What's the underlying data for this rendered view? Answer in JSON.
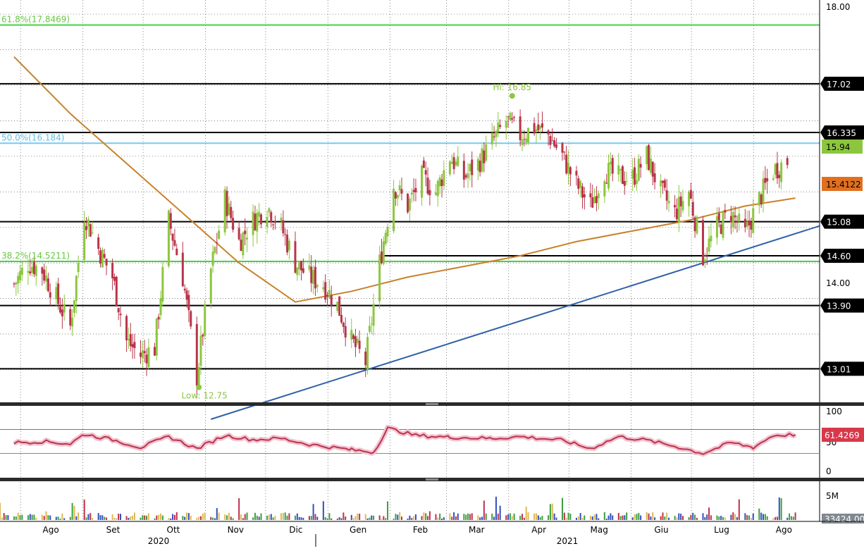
{
  "chart_data": [
    {
      "type": "candlestick",
      "panel": "price",
      "ylim": [
        12.3,
        18.1
      ],
      "y_ticks": [
        "18.00",
        "14.00"
      ],
      "x_months": [
        "Ago",
        "Set",
        "Ott",
        "Nov",
        "Dic",
        "Gen",
        "Feb",
        "Mar",
        "Apr",
        "Mag",
        "Giu",
        "Lug",
        "Ago"
      ],
      "x_years": [
        "2020",
        "2021"
      ],
      "approx_close_path": [
        {
          "date": "2020-07-27",
          "close": 14.2
        },
        {
          "date": "2020-08-03",
          "close": 14.5
        },
        {
          "date": "2020-08-10",
          "close": 14.4
        },
        {
          "date": "2020-08-17",
          "close": 14.0
        },
        {
          "date": "2020-08-24",
          "close": 13.6
        },
        {
          "date": "2020-08-31",
          "close": 15.2
        },
        {
          "date": "2020-09-07",
          "close": 14.7
        },
        {
          "date": "2020-09-14",
          "close": 14.3
        },
        {
          "date": "2020-09-21",
          "close": 13.4
        },
        {
          "date": "2020-09-28",
          "close": 13.2
        },
        {
          "date": "2020-10-05",
          "close": 13.3
        },
        {
          "date": "2020-10-12",
          "close": 15.1
        },
        {
          "date": "2020-10-19",
          "close": 14.3
        },
        {
          "date": "2020-10-26",
          "close": 12.9
        },
        {
          "date": "2020-11-02",
          "close": 14.4
        },
        {
          "date": "2020-11-09",
          "close": 15.4
        },
        {
          "date": "2020-11-16",
          "close": 14.8
        },
        {
          "date": "2020-11-23",
          "close": 15.1
        },
        {
          "date": "2020-11-30",
          "close": 15.3
        },
        {
          "date": "2020-12-07",
          "close": 15.0
        },
        {
          "date": "2020-12-14",
          "close": 14.5
        },
        {
          "date": "2020-12-21",
          "close": 14.3
        },
        {
          "date": "2020-12-28",
          "close": 14.2
        },
        {
          "date": "2021-01-04",
          "close": 13.9
        },
        {
          "date": "2021-01-11",
          "close": 13.4
        },
        {
          "date": "2021-01-18",
          "close": 13.1
        },
        {
          "date": "2021-01-25",
          "close": 14.5
        },
        {
          "date": "2021-02-01",
          "close": 15.6
        },
        {
          "date": "2021-02-08",
          "close": 15.3
        },
        {
          "date": "2021-02-15",
          "close": 15.7
        },
        {
          "date": "2021-02-22",
          "close": 15.5
        },
        {
          "date": "2021-03-01",
          "close": 16.0
        },
        {
          "date": "2021-03-08",
          "close": 15.7
        },
        {
          "date": "2021-03-15",
          "close": 15.9
        },
        {
          "date": "2021-03-22",
          "close": 16.2
        },
        {
          "date": "2021-03-29",
          "close": 16.5
        },
        {
          "date": "2021-04-05",
          "close": 16.3
        },
        {
          "date": "2021-04-12",
          "close": 16.4
        },
        {
          "date": "2021-04-19",
          "close": 16.3
        },
        {
          "date": "2021-04-26",
          "close": 16.0
        },
        {
          "date": "2021-05-03",
          "close": 15.6
        },
        {
          "date": "2021-05-10",
          "close": 15.3
        },
        {
          "date": "2021-05-17",
          "close": 15.8
        },
        {
          "date": "2021-05-24",
          "close": 15.7
        },
        {
          "date": "2021-05-31",
          "close": 15.7
        },
        {
          "date": "2021-06-07",
          "close": 16.0
        },
        {
          "date": "2021-06-14",
          "close": 15.5
        },
        {
          "date": "2021-06-21",
          "close": 15.2
        },
        {
          "date": "2021-06-28",
          "close": 15.5
        },
        {
          "date": "2021-07-05",
          "close": 14.6
        },
        {
          "date": "2021-07-12",
          "close": 15.0
        },
        {
          "date": "2021-07-19",
          "close": 15.2
        },
        {
          "date": "2021-07-26",
          "close": 14.9
        },
        {
          "date": "2021-08-02",
          "close": 15.4
        },
        {
          "date": "2021-08-09",
          "close": 15.8
        },
        {
          "date": "2021-08-16",
          "close": 15.94
        }
      ],
      "moving_average": [
        {
          "date": "2020-07-27",
          "value": 17.4
        },
        {
          "date": "2020-08-24",
          "value": 16.6
        },
        {
          "date": "2020-09-21",
          "value": 15.9
        },
        {
          "date": "2020-10-19",
          "value": 15.2
        },
        {
          "date": "2020-11-16",
          "value": 14.5
        },
        {
          "date": "2020-12-14",
          "value": 13.95
        },
        {
          "date": "2021-01-11",
          "value": 14.1
        },
        {
          "date": "2021-02-08",
          "value": 14.3
        },
        {
          "date": "2021-03-08",
          "value": 14.45
        },
        {
          "date": "2021-04-05",
          "value": 14.6
        },
        {
          "date": "2021-05-03",
          "value": 14.8
        },
        {
          "date": "2021-05-31",
          "value": 14.95
        },
        {
          "date": "2021-06-28",
          "value": 15.1
        },
        {
          "date": "2021-07-26",
          "value": 15.3
        },
        {
          "date": "2021-08-20",
          "value": 15.4122
        }
      ],
      "trendline": [
        {
          "date": "2020-11-02",
          "value": 12.3
        },
        {
          "date": "2021-01-25",
          "value": 13.06
        },
        {
          "date": "2021-08-27",
          "value": 15.02
        }
      ],
      "levels": [
        {
          "label": "17.02",
          "value": 17.02
        },
        {
          "label": "16.335",
          "value": 16.335
        },
        {
          "label": "15.08",
          "value": 15.08
        },
        {
          "label": "14.60",
          "value": 14.6
        },
        {
          "label": "13.90",
          "value": 13.9
        },
        {
          "label": "13.01",
          "value": 13.01
        }
      ],
      "fibonacci": [
        {
          "label": "61.8%(17.8469)",
          "value": 17.8469
        },
        {
          "label": "50.0%(16.184)",
          "value": 16.184
        },
        {
          "label": "38.2%(14.5211)",
          "value": 14.5211
        }
      ],
      "last_price_tag": "15.94",
      "ma_tag": "15.4122",
      "annotations": [
        {
          "text": "Hi: 16.85",
          "value": 16.85,
          "date": "2021-04-01"
        },
        {
          "text": "Low: 12.75",
          "value": 12.75,
          "date": "2020-10-27"
        }
      ],
      "colors": {
        "up": "#8cc63f",
        "down": "#b8354a",
        "ma": "#c8822a",
        "trend": "#3060a8",
        "fib": "#44d444",
        "fib_mid": "#78c8f0",
        "level": "#000000"
      }
    },
    {
      "type": "line",
      "panel": "rsi",
      "ylim": [
        0,
        100
      ],
      "y_ticks": [
        "100",
        "50",
        "0"
      ],
      "bands": [
        70,
        30
      ],
      "last_value_tag": "61.4269",
      "values": [
        {
          "date": "2020-07-27",
          "value": 48
        },
        {
          "date": "2020-08-10",
          "value": 50
        },
        {
          "date": "2020-08-24",
          "value": 46
        },
        {
          "date": "2020-08-31",
          "value": 62
        },
        {
          "date": "2020-09-14",
          "value": 53
        },
        {
          "date": "2020-09-28",
          "value": 40
        },
        {
          "date": "2020-10-12",
          "value": 58
        },
        {
          "date": "2020-10-26",
          "value": 38
        },
        {
          "date": "2020-11-09",
          "value": 60
        },
        {
          "date": "2020-11-23",
          "value": 53
        },
        {
          "date": "2020-12-07",
          "value": 55
        },
        {
          "date": "2020-12-21",
          "value": 45
        },
        {
          "date": "2021-01-11",
          "value": 36
        },
        {
          "date": "2021-01-22",
          "value": 32
        },
        {
          "date": "2021-01-29",
          "value": 72
        },
        {
          "date": "2021-02-12",
          "value": 60
        },
        {
          "date": "2021-03-01",
          "value": 57
        },
        {
          "date": "2021-03-22",
          "value": 55
        },
        {
          "date": "2021-04-05",
          "value": 58
        },
        {
          "date": "2021-04-26",
          "value": 52
        },
        {
          "date": "2021-05-10",
          "value": 38
        },
        {
          "date": "2021-05-24",
          "value": 58
        },
        {
          "date": "2021-06-07",
          "value": 52
        },
        {
          "date": "2021-06-21",
          "value": 42
        },
        {
          "date": "2021-07-05",
          "value": 30
        },
        {
          "date": "2021-07-19",
          "value": 48
        },
        {
          "date": "2021-07-30",
          "value": 40
        },
        {
          "date": "2021-08-09",
          "value": 60
        },
        {
          "date": "2021-08-20",
          "value": 61.43
        }
      ],
      "colors": {
        "line": "#b8354a",
        "upper": "#d05050",
        "lower": "#44b844"
      }
    },
    {
      "type": "bar",
      "panel": "volume",
      "y_ticks": [
        "5M"
      ],
      "last_value_tag": "33424.00",
      "ylim": [
        0,
        8000000
      ],
      "colors": {
        "up": "#3aa040",
        "down": "#c0304a",
        "neutral": "#3050c0",
        "weak": "#e0b850"
      }
    }
  ]
}
